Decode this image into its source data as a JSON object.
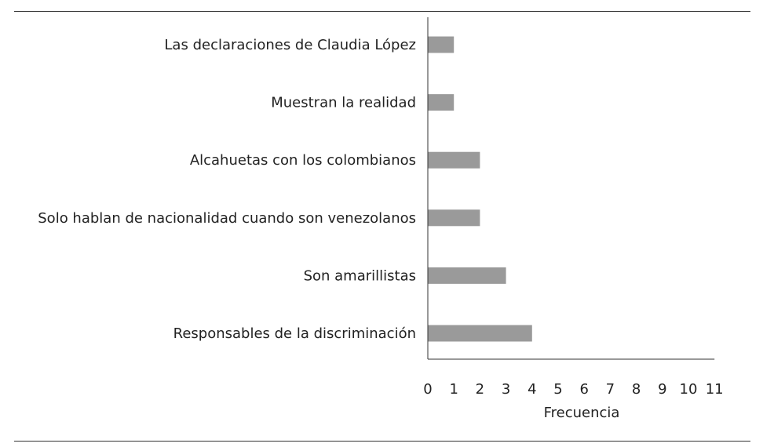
{
  "chart_data": {
    "type": "bar",
    "orientation": "horizontal",
    "categories": [
      "Las declaraciones de Claudia López",
      "Muestran la realidad",
      "Alcahuetas con los colombianos",
      "Solo hablan de nacionalidad cuando son venezolanos",
      "Son amarillistas",
      "Responsables de la discriminación"
    ],
    "values": [
      1,
      1,
      2,
      2,
      3,
      4
    ],
    "xlabel": "Frecuencia",
    "ylabel": "",
    "title": "",
    "xlim": [
      0,
      11
    ],
    "xticks": [
      "0",
      "1",
      "2",
      "3",
      "4",
      "5",
      "6",
      "7",
      "8",
      "9",
      "10",
      "11"
    ],
    "bar_color": "#9a9a9a",
    "grid": false,
    "legend": "none"
  }
}
